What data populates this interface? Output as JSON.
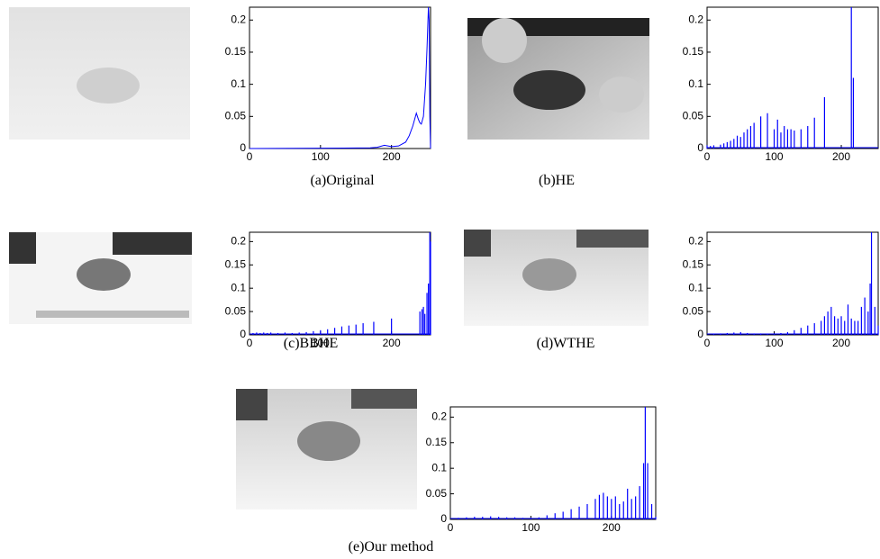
{
  "chart_data": [
    {
      "type": "line",
      "title": "(a)Original",
      "color": "#0000ff",
      "x": [
        0,
        170,
        180,
        190,
        195,
        200,
        210,
        220,
        225,
        230,
        235,
        238,
        240,
        242,
        245,
        248,
        250,
        252,
        253,
        254,
        255
      ],
      "values": [
        0,
        0.001,
        0.002,
        0.005,
        0.004,
        0.003,
        0.004,
        0.01,
        0.02,
        0.035,
        0.055,
        0.045,
        0.04,
        0.038,
        0.05,
        0.1,
        0.155,
        0.22,
        0.2,
        0.05,
        0
      ],
      "xlim": [
        0,
        255
      ],
      "xticks": [
        0,
        100,
        200
      ],
      "ylim": [
        0,
        0.22
      ],
      "yticks": [
        0,
        0.05,
        0.1,
        0.15,
        0.2
      ]
    },
    {
      "type": "stem",
      "title": "(b)HE",
      "color": "#0000ff",
      "x": [
        0,
        5,
        10,
        20,
        25,
        30,
        35,
        40,
        45,
        50,
        55,
        60,
        65,
        70,
        80,
        90,
        100,
        105,
        110,
        115,
        120,
        125,
        130,
        140,
        150,
        160,
        175,
        215,
        218
      ],
      "values": [
        0.005,
        0.004,
        0.005,
        0.006,
        0.008,
        0.01,
        0.012,
        0.015,
        0.02,
        0.018,
        0.025,
        0.03,
        0.035,
        0.04,
        0.05,
        0.055,
        0.03,
        0.045,
        0.025,
        0.035,
        0.03,
        0.03,
        0.028,
        0.03,
        0.035,
        0.048,
        0.08,
        0.22,
        0.11
      ],
      "xlim": [
        0,
        255
      ],
      "xticks": [
        0,
        100,
        200
      ],
      "ylim": [
        0,
        0.22
      ],
      "yticks": [
        0,
        0.05,
        0.1,
        0.15,
        0.2
      ]
    },
    {
      "type": "stem",
      "title": "(c)BBHE",
      "color": "#0000ff",
      "x": [
        5,
        10,
        15,
        20,
        25,
        30,
        40,
        50,
        60,
        70,
        80,
        90,
        100,
        110,
        120,
        130,
        140,
        150,
        160,
        175,
        200,
        240,
        243,
        245,
        247,
        250,
        252,
        254,
        255
      ],
      "values": [
        0.004,
        0.005,
        0.004,
        0.005,
        0.004,
        0.005,
        0.004,
        0.005,
        0.004,
        0.005,
        0.006,
        0.008,
        0.01,
        0.012,
        0.015,
        0.018,
        0.02,
        0.022,
        0.025,
        0.028,
        0.035,
        0.05,
        0.055,
        0.06,
        0.045,
        0.09,
        0.11,
        0.22,
        0.2
      ],
      "xlim": [
        0,
        255
      ],
      "xticks": [
        0,
        100,
        200
      ],
      "ylim": [
        0,
        0.22
      ],
      "yticks": [
        0,
        0.05,
        0.1,
        0.15,
        0.2
      ]
    },
    {
      "type": "stem",
      "title": "(d)WTHE",
      "color": "#0000ff",
      "x": [
        10,
        20,
        30,
        40,
        50,
        60,
        70,
        80,
        90,
        100,
        110,
        120,
        130,
        140,
        150,
        160,
        170,
        175,
        180,
        185,
        190,
        195,
        200,
        205,
        210,
        215,
        220,
        225,
        230,
        235,
        240,
        243,
        245,
        250,
        255
      ],
      "values": [
        0.002,
        0.003,
        0.004,
        0.005,
        0.006,
        0.004,
        0.003,
        0.003,
        0.002,
        0.003,
        0.004,
        0.006,
        0.01,
        0.015,
        0.02,
        0.025,
        0.03,
        0.04,
        0.05,
        0.06,
        0.04,
        0.035,
        0.04,
        0.03,
        0.065,
        0.035,
        0.03,
        0.03,
        0.06,
        0.08,
        0.05,
        0.11,
        0.22,
        0.06,
        0.02
      ],
      "xlim": [
        0,
        255
      ],
      "xticks": [
        0,
        100,
        200
      ],
      "ylim": [
        0,
        0.22
      ],
      "yticks": [
        0,
        0.05,
        0.1,
        0.15,
        0.2
      ]
    },
    {
      "type": "stem",
      "title": "(e)Our method",
      "color": "#0000ff",
      "x": [
        10,
        20,
        30,
        40,
        50,
        60,
        70,
        80,
        90,
        100,
        110,
        120,
        130,
        140,
        150,
        160,
        170,
        180,
        185,
        190,
        195,
        200,
        205,
        210,
        215,
        220,
        225,
        230,
        235,
        240,
        242,
        245,
        250,
        255
      ],
      "values": [
        0.003,
        0.004,
        0.005,
        0.005,
        0.006,
        0.005,
        0.004,
        0.004,
        0.003,
        0.003,
        0.004,
        0.008,
        0.012,
        0.015,
        0.02,
        0.025,
        0.03,
        0.04,
        0.048,
        0.052,
        0.045,
        0.04,
        0.045,
        0.03,
        0.035,
        0.06,
        0.04,
        0.045,
        0.065,
        0.11,
        0.22,
        0.11,
        0.03,
        0.005
      ],
      "xlim": [
        0,
        255
      ],
      "xticks": [
        0,
        100,
        200
      ],
      "ylim": [
        0,
        0.22
      ],
      "yticks": [
        0,
        0.05,
        0.1,
        0.15,
        0.2
      ]
    }
  ]
}
